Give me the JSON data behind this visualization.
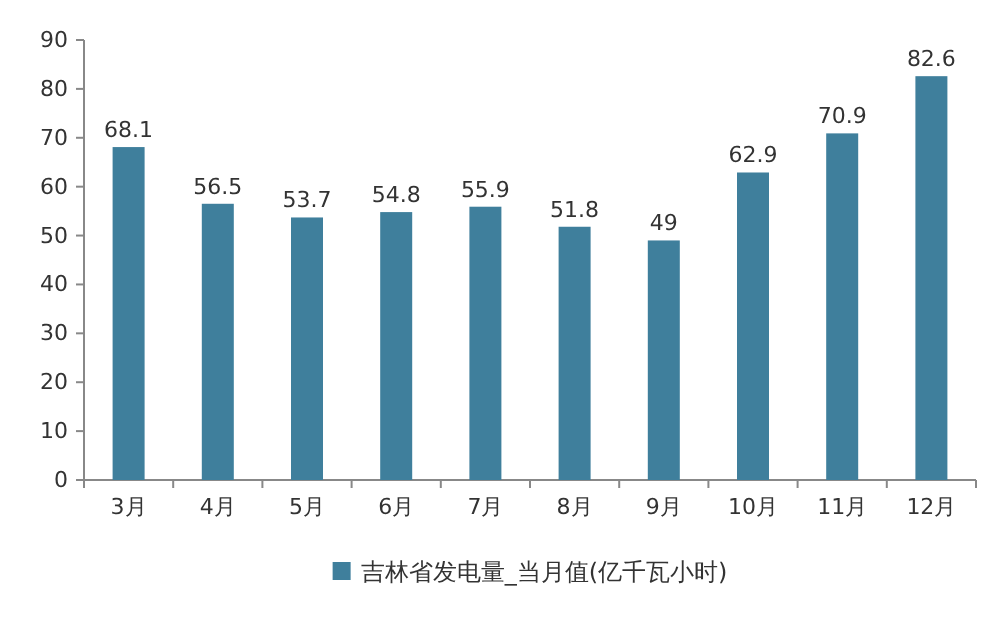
{
  "chart_data": {
    "type": "bar",
    "categories": [
      "3月",
      "4月",
      "5月",
      "6月",
      "7月",
      "8月",
      "9月",
      "10月",
      "11月",
      "12月"
    ],
    "series": [
      {
        "name": "吉林省发电量_当月值(亿千瓦小时)",
        "color": "#3f7f9c",
        "values": [
          68.1,
          56.5,
          53.7,
          54.8,
          55.9,
          51.8,
          49,
          62.9,
          70.9,
          82.6
        ]
      }
    ],
    "ylim": [
      0,
      90
    ],
    "yticks": [
      0,
      10,
      20,
      30,
      40,
      50,
      60,
      70,
      80,
      90
    ],
    "data_labels": true,
    "legend": "bottom",
    "grid": false
  }
}
